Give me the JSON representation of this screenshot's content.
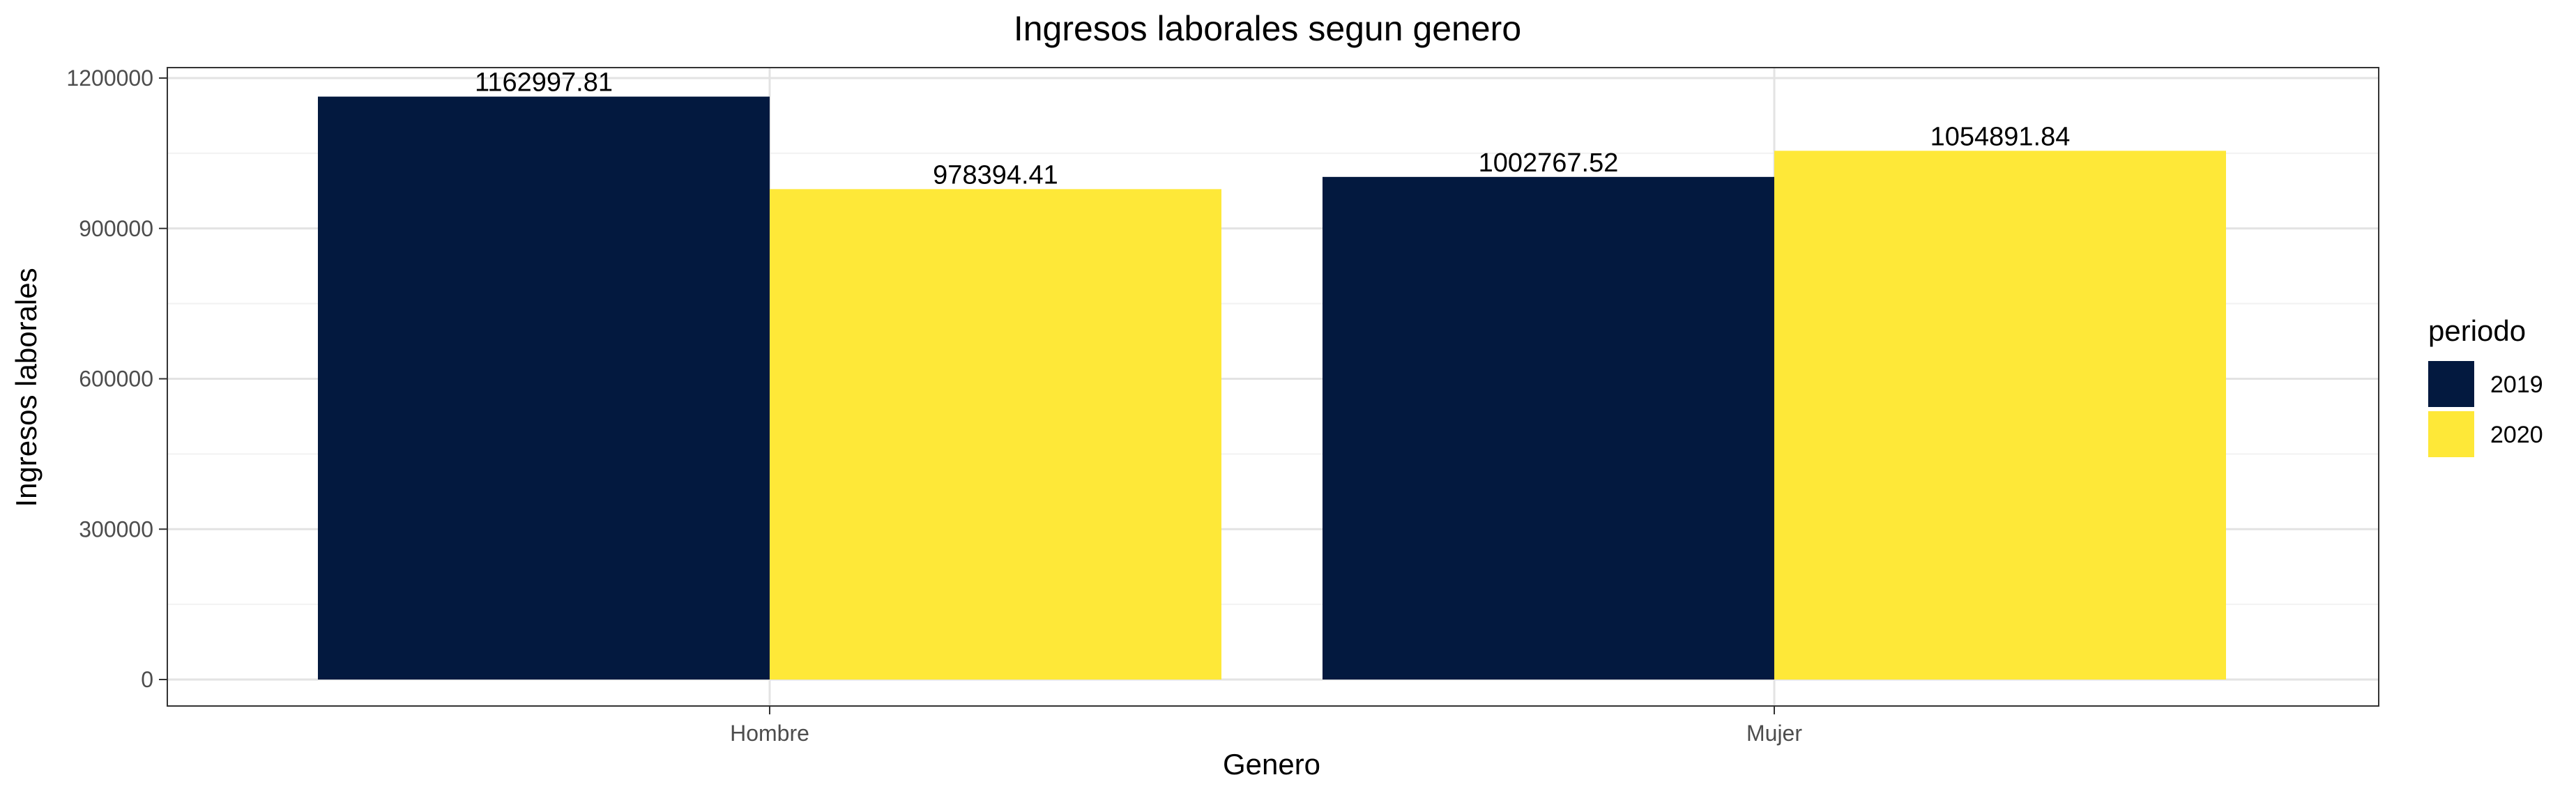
{
  "chart_data": {
    "type": "bar",
    "title": "Ingresos laborales segun genero",
    "xlabel": "Genero",
    "ylabel": "Ingresos laborales",
    "categories": [
      "Hombre",
      "Mujer"
    ],
    "series": [
      {
        "name": "2019",
        "values": [
          1162997.81,
          1002767.52
        ],
        "labels": [
          "1162997.81",
          "1002767.52"
        ],
        "color": "#03193F"
      },
      {
        "name": "2020",
        "values": [
          978394.41,
          1054891.84
        ],
        "labels": [
          "978394.41",
          "1054891.84"
        ],
        "color": "#FEE838"
      }
    ],
    "ylim": [
      0,
      1200000
    ],
    "yticks": [
      0,
      300000,
      600000,
      900000,
      1200000
    ],
    "ytick_labels": [
      "0",
      "300000",
      "600000",
      "900000",
      "1200000"
    ],
    "grid": true,
    "legend": {
      "title": "periodo",
      "position": "right"
    }
  }
}
